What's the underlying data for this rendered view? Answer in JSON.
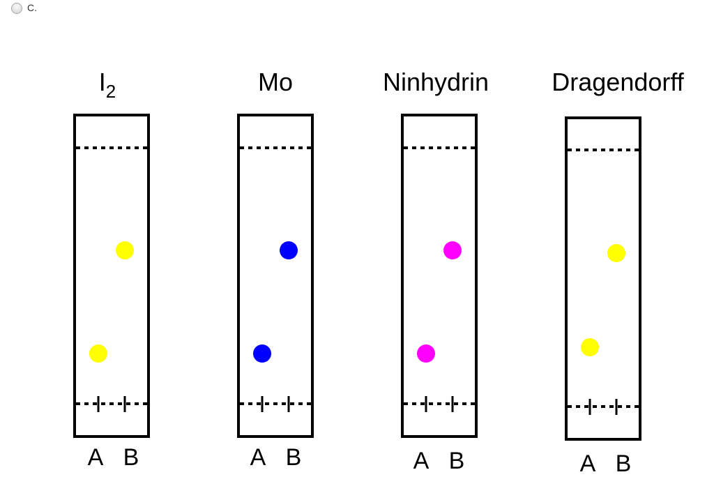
{
  "option": {
    "label": "C."
  },
  "colors": {
    "yellow": "#ffff00",
    "blue": "#0000ff",
    "magenta": "#ff00ff",
    "outline": "#000000"
  },
  "plates": [
    {
      "stain": "I",
      "stain_subscript": "2",
      "spot_color": "yellow",
      "lanes": [
        "A",
        "B"
      ]
    },
    {
      "stain": "Mo",
      "stain_subscript": "",
      "spot_color": "blue",
      "lanes": [
        "A",
        "B"
      ]
    },
    {
      "stain": "Ninhydrin",
      "stain_subscript": "",
      "spot_color": "magenta",
      "lanes": [
        "A",
        "B"
      ]
    },
    {
      "stain": "Dragendorff",
      "stain_subscript": "",
      "spot_color": "yellow",
      "lanes": [
        "A",
        "B"
      ]
    }
  ]
}
